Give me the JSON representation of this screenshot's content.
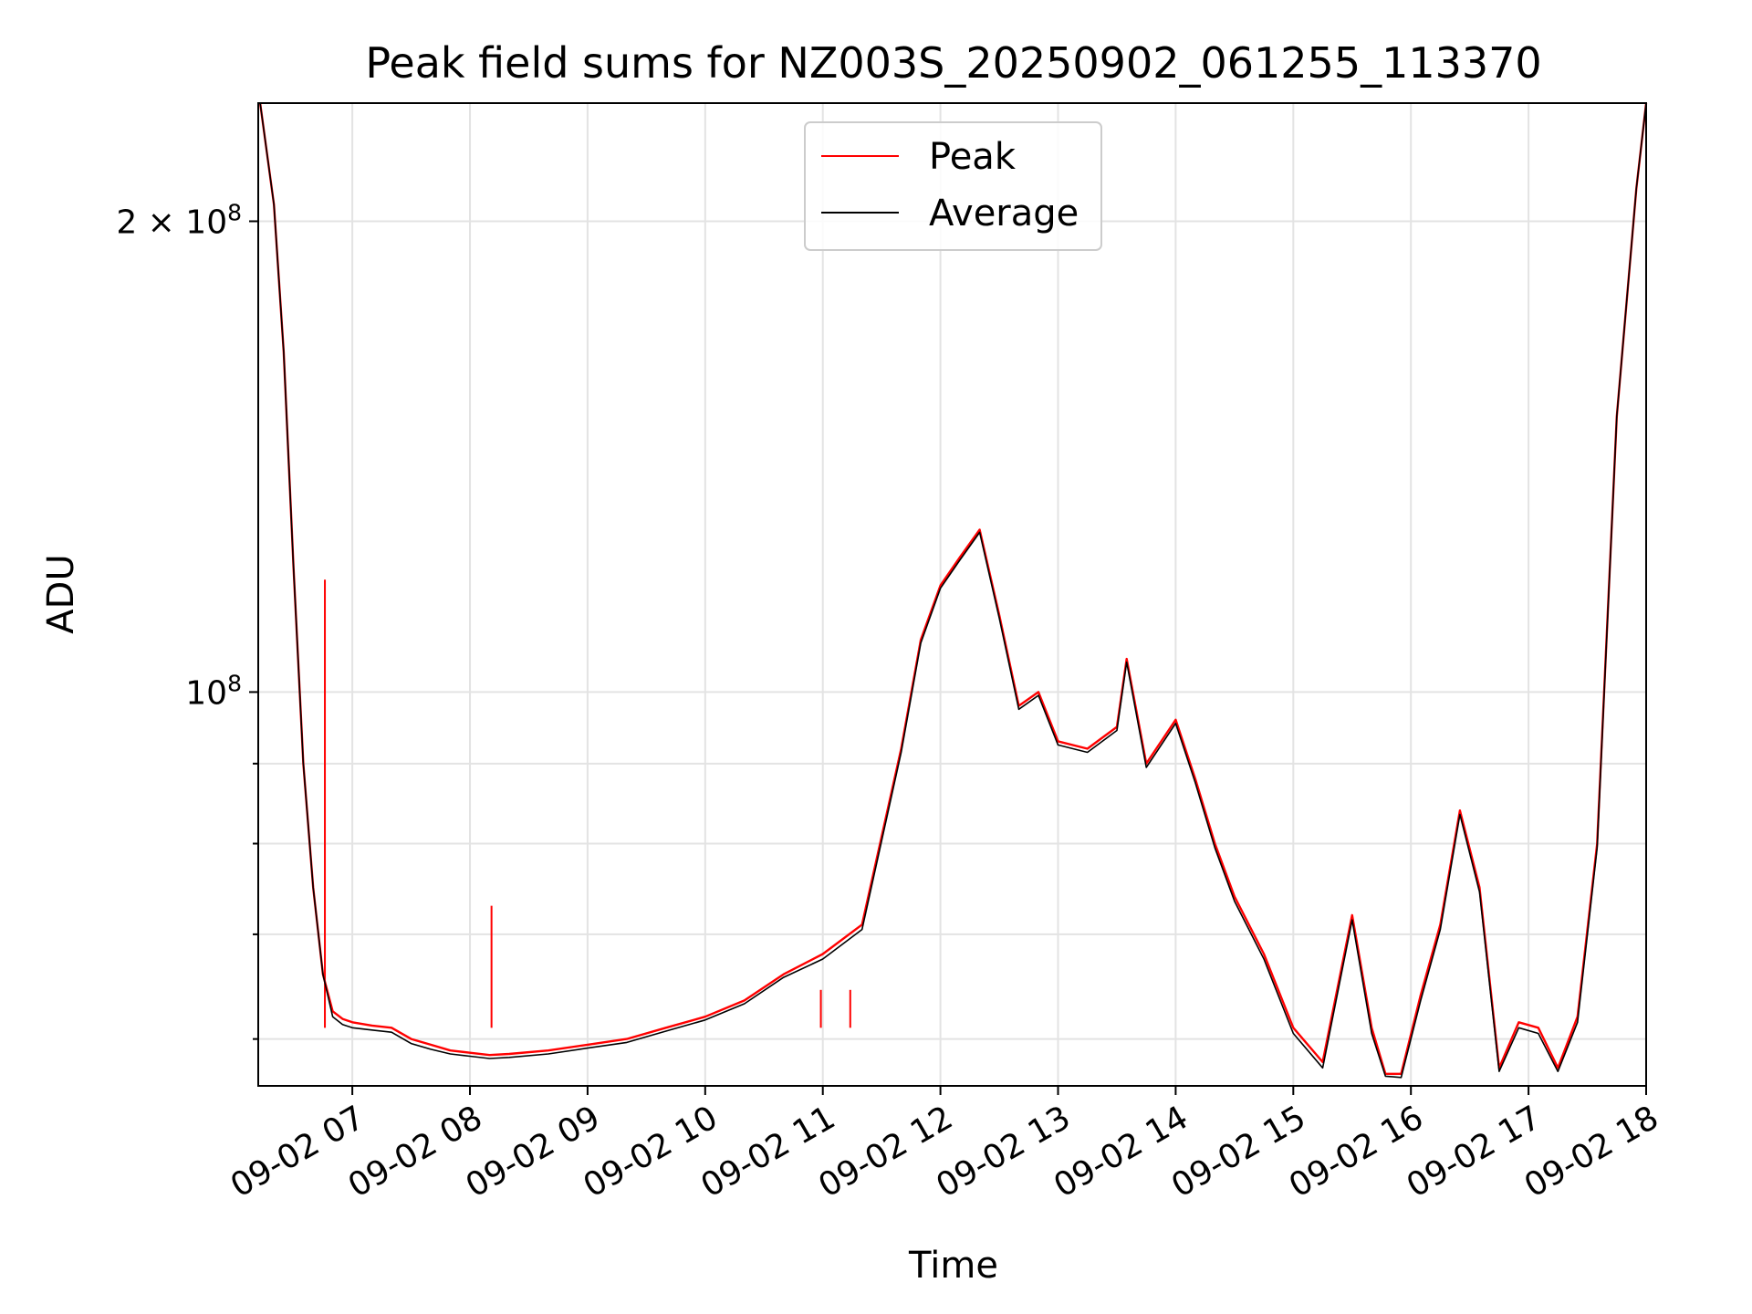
{
  "chart_data": {
    "type": "line",
    "title": "Peak field sums for NZ003S_20250902_061255_113370",
    "xlabel": "Time",
    "ylabel": "ADU",
    "y_scale": "log",
    "grid": true,
    "legend_position": "upper center",
    "xlim": [
      "2025-09-02 06:12",
      "2025-09-02 18:00"
    ],
    "ylim": [
      56000000,
      238000000
    ],
    "x_ticks": [
      "09-02 07",
      "09-02 08",
      "09-02 09",
      "09-02 10",
      "09-02 11",
      "09-02 12",
      "09-02 13",
      "09-02 14",
      "09-02 15",
      "09-02 16",
      "09-02 17",
      "09-02 18"
    ],
    "y_ticks": [
      {
        "value": 100000000,
        "label_base": "10",
        "label_exp": "8"
      },
      {
        "value": 200000000,
        "label_base": "2 × 10",
        "label_exp": "8"
      }
    ],
    "y_minor_ticks": [
      60000000,
      70000000,
      80000000,
      90000000
    ],
    "x_times": [
      "06:13",
      "06:20",
      "06:25",
      "06:30",
      "06:35",
      "06:40",
      "06:45",
      "06:50",
      "06:55",
      "07:00",
      "07:10",
      "07:20",
      "07:30",
      "07:40",
      "07:50",
      "08:00",
      "08:10",
      "08:20",
      "08:40",
      "09:00",
      "09:20",
      "09:40",
      "10:00",
      "10:20",
      "10:40",
      "11:00",
      "11:20",
      "11:40",
      "11:50",
      "12:00",
      "12:10",
      "12:20",
      "12:30",
      "12:40",
      "12:50",
      "13:00",
      "13:15",
      "13:30",
      "13:35",
      "13:45",
      "14:00",
      "14:10",
      "14:20",
      "14:30",
      "14:45",
      "15:00",
      "15:15",
      "15:30",
      "15:40",
      "15:47",
      "15:55",
      "16:05",
      "16:15",
      "16:25",
      "16:35",
      "16:45",
      "16:55",
      "17:05",
      "17:15",
      "17:25",
      "17:35",
      "17:45",
      "17:55",
      "18:00"
    ],
    "series": [
      {
        "name": "Peak",
        "color": "#ff0000",
        "values": [
          238000000,
          205000000,
          165000000,
          120000000,
          90000000,
          75000000,
          66000000,
          62500000,
          61800000,
          61500000,
          61200000,
          61000000,
          60000000,
          59500000,
          59000000,
          58800000,
          58600000,
          58700000,
          59000000,
          59500000,
          60000000,
          61000000,
          62000000,
          63500000,
          66000000,
          68000000,
          71000000,
          92000000,
          108000000,
          117000000,
          122000000,
          127000000,
          112000000,
          98000000,
          100000000,
          93000000,
          92000000,
          95000000,
          105000000,
          90000000,
          96000000,
          88000000,
          80000000,
          74000000,
          68000000,
          61000000,
          58000000,
          72000000,
          61000000,
          57000000,
          57000000,
          64000000,
          71000000,
          84000000,
          75000000,
          57500000,
          61500000,
          61000000,
          57500000,
          62000000,
          80000000,
          150000000,
          210000000,
          238000000
        ],
        "spikes": [
          {
            "time": "06:46",
            "value": 118000000
          },
          {
            "time": "08:11",
            "value": 73000000
          },
          {
            "time": "10:59",
            "value": 64500000
          },
          {
            "time": "11:14",
            "value": 64500000
          }
        ]
      },
      {
        "name": "Average",
        "color": "#000000",
        "values": [
          238000000,
          205000000,
          165000000,
          120000000,
          90000000,
          75000000,
          66000000,
          62000000,
          61300000,
          61000000,
          60800000,
          60600000,
          59600000,
          59100000,
          58700000,
          58500000,
          58300000,
          58400000,
          58700000,
          59200000,
          59700000,
          60700000,
          61700000,
          63200000,
          65700000,
          67500000,
          70500000,
          91500000,
          107500000,
          116500000,
          121500000,
          126500000,
          111500000,
          97500000,
          99500000,
          92500000,
          91500000,
          94500000,
          104500000,
          89500000,
          95500000,
          87500000,
          79500000,
          73500000,
          67500000,
          60500000,
          57500000,
          71500000,
          60500000,
          56800000,
          56700000,
          63500000,
          70500000,
          83500000,
          74500000,
          57200000,
          61000000,
          60500000,
          57200000,
          61500000,
          79500000,
          150000000,
          210000000,
          238000000
        ]
      }
    ]
  }
}
